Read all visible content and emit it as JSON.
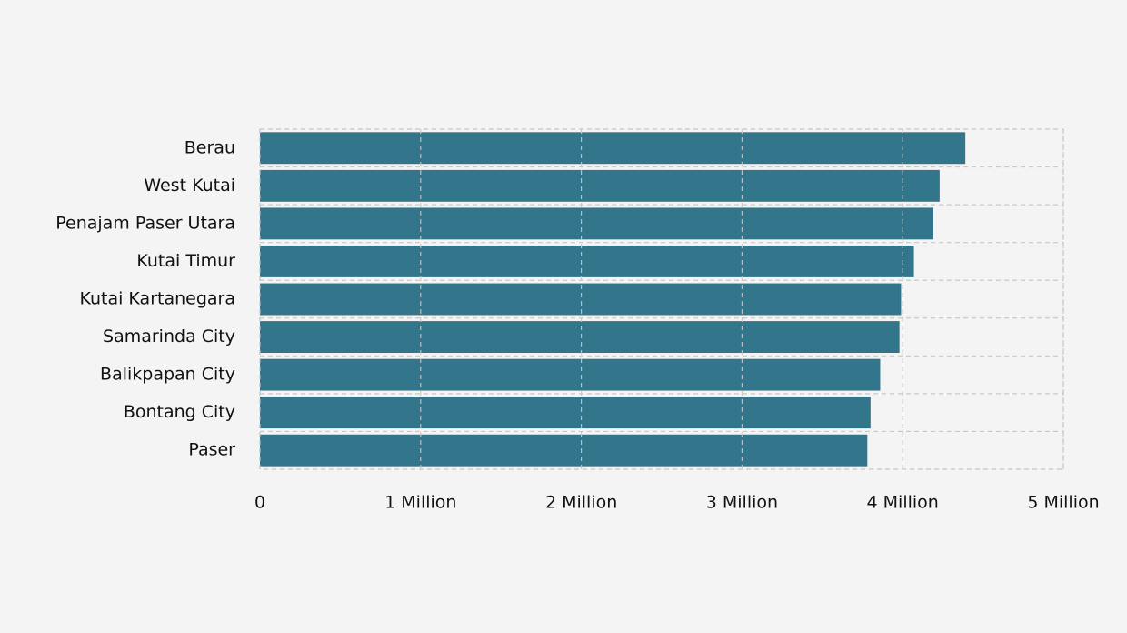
{
  "chart_data": {
    "type": "bar",
    "orientation": "horizontal",
    "categories": [
      "Berau",
      "West Kutai",
      "Penajam Paser Utara",
      "Kutai Timur",
      "Kutai Kartanegara",
      "Samarinda City",
      "Balikpapan City",
      "Bontang City",
      "Paser"
    ],
    "values": [
      4390000,
      4230000,
      4190000,
      4070000,
      3990000,
      3980000,
      3860000,
      3800000,
      3780000
    ],
    "color": "#2f7289",
    "xlim": [
      0,
      5000000
    ],
    "xticks": [
      0,
      {
        "value": 1000000,
        "label": "1 Million"
      },
      {
        "value": 2000000,
        "label": "2 Million"
      },
      {
        "value": 3000000,
        "label": "3 Million"
      },
      {
        "value": 4000000,
        "label": "4 Million"
      },
      {
        "value": 5000000,
        "label": "5 Million"
      }
    ],
    "grid": true
  }
}
